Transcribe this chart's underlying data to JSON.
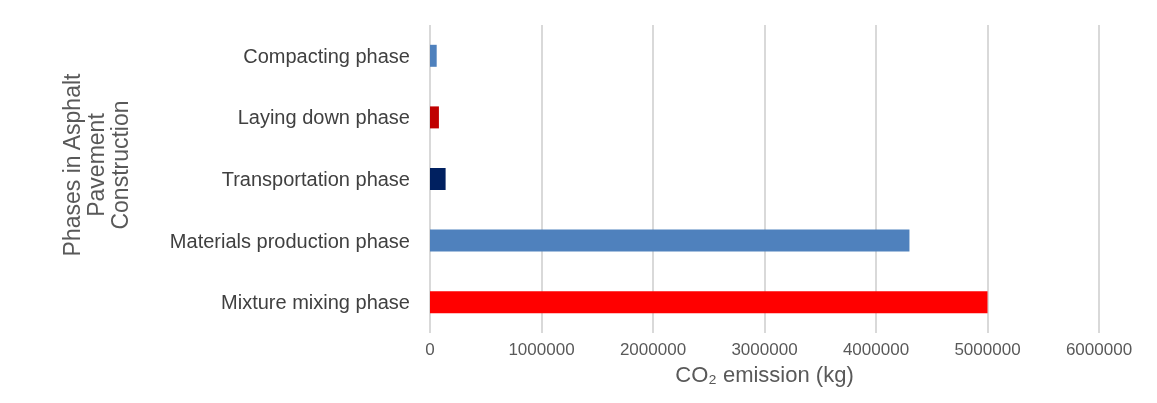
{
  "chart_data": {
    "type": "bar",
    "orientation": "horizontal",
    "xlabel": "CO₂ emission (kg)",
    "ylabel": "Phases in Asphalt Pavement Construction",
    "categories": [
      "Compacting phase",
      "Laying down phase",
      "Transportation phase",
      "Materials production phase",
      "Mixture mixing phase"
    ],
    "values": [
      60000,
      80000,
      140000,
      4300000,
      5000000
    ],
    "colors": [
      "#4f81bd",
      "#c00000",
      "#002060",
      "#4f81bd",
      "#ff0000"
    ],
    "xlim": [
      0,
      6000000
    ],
    "xticks": [
      0,
      1000000,
      2000000,
      3000000,
      4000000,
      5000000,
      6000000
    ],
    "grid": "x"
  }
}
